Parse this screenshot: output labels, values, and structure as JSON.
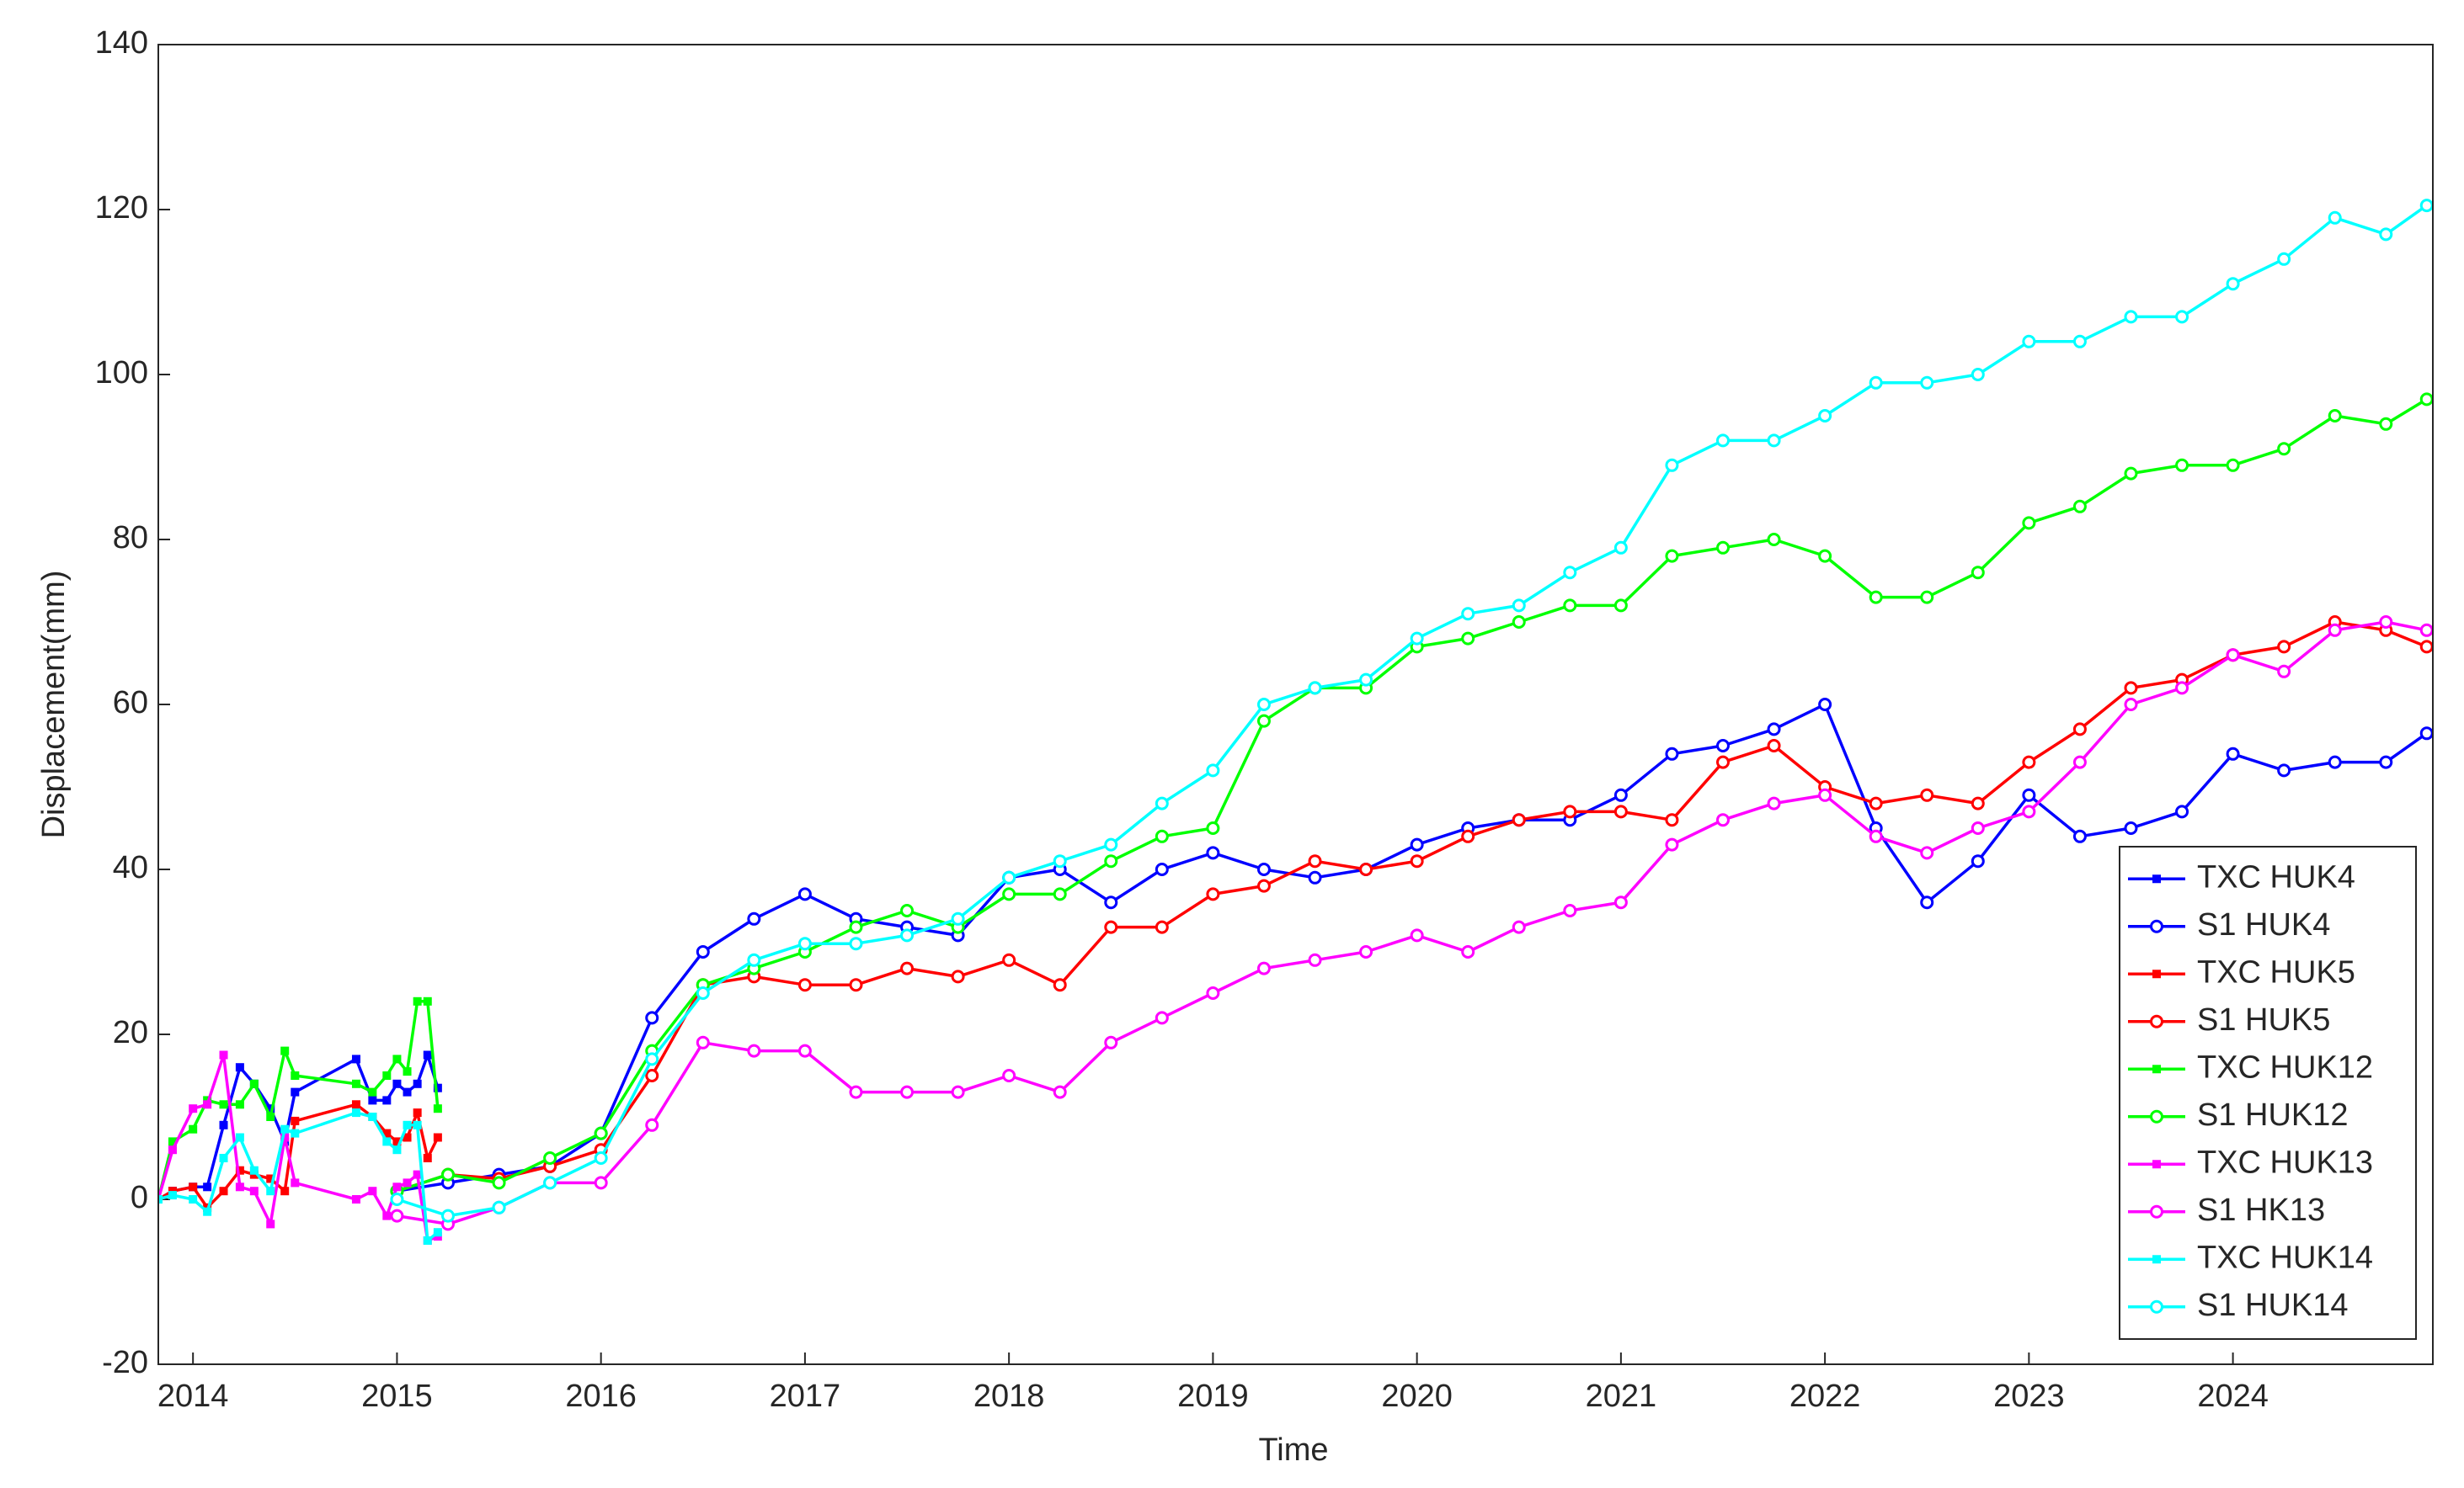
{
  "chart_data": {
    "type": "line",
    "xlabel": "Time",
    "ylabel": "Displacement(mm)",
    "xlim": [
      2013.83,
      2024.98
    ],
    "xticks": [
      2014,
      2015,
      2016,
      2017,
      2018,
      2019,
      2020,
      2021,
      2022,
      2023,
      2024
    ],
    "ylim": [
      -20,
      140
    ],
    "yticks": [
      -20,
      0,
      20,
      40,
      60,
      80,
      100,
      120,
      140
    ],
    "grid": false,
    "legend": "lower right",
    "series": [
      {
        "name": "TXC HUK4",
        "color": "#0000ff",
        "marker": "square",
        "x": [
          2013.83,
          2013.9,
          2014.0,
          2014.07,
          2014.15,
          2014.23,
          2014.3,
          2014.38,
          2014.45,
          2014.5,
          2014.8,
          2014.88,
          2014.95,
          2015.0,
          2015.05,
          2015.1,
          2015.15,
          2015.2
        ],
        "values": [
          0,
          1,
          1.5,
          1.5,
          9,
          16,
          14,
          11,
          7,
          13,
          17,
          12,
          12,
          14,
          13,
          14,
          17.5,
          13.5
        ]
      },
      {
        "name": "S1 HUK4",
        "color": "#0000ff",
        "marker": "circle",
        "x": [
          2015.0,
          2015.25,
          2015.5,
          2015.75,
          2016.0,
          2016.25,
          2016.5,
          2016.75,
          2017.0,
          2017.25,
          2017.5,
          2017.75,
          2018.0,
          2018.25,
          2018.5,
          2018.75,
          2019.0,
          2019.25,
          2019.5,
          2019.75,
          2020.0,
          2020.25,
          2020.5,
          2020.75,
          2021.0,
          2021.25,
          2021.5,
          2021.75,
          2022.0,
          2022.25,
          2022.5,
          2022.75,
          2023.0,
          2023.25,
          2023.5,
          2023.75,
          2024.0,
          2024.25,
          2024.5,
          2024.75,
          2024.95
        ],
        "values": [
          1,
          2,
          3,
          4,
          8,
          22,
          30,
          34,
          37,
          34,
          33,
          32,
          39,
          40,
          36,
          40,
          42,
          40,
          39,
          40,
          43,
          45,
          46,
          46,
          49,
          54,
          55,
          57,
          60,
          45,
          36,
          41,
          49,
          44,
          45,
          47,
          54,
          52,
          53,
          53,
          56.5
        ]
      },
      {
        "name": "TXC HUK5",
        "color": "#ff0000",
        "marker": "square",
        "x": [
          2013.83,
          2013.9,
          2014.0,
          2014.07,
          2014.15,
          2014.23,
          2014.3,
          2014.38,
          2014.45,
          2014.5,
          2014.8,
          2014.88,
          2014.95,
          2015.0,
          2015.05,
          2015.1,
          2015.15,
          2015.2
        ],
        "values": [
          0,
          1,
          1.5,
          -1,
          1,
          3.5,
          3,
          2.5,
          1,
          9.5,
          11.5,
          10,
          8,
          7,
          7.5,
          10.5,
          5,
          7.5
        ]
      },
      {
        "name": "S1 HUK5",
        "color": "#ff0000",
        "marker": "circle",
        "x": [
          2015.0,
          2015.25,
          2015.5,
          2015.75,
          2016.0,
          2016.25,
          2016.5,
          2016.75,
          2017.0,
          2017.25,
          2017.5,
          2017.75,
          2018.0,
          2018.25,
          2018.5,
          2018.75,
          2019.0,
          2019.25,
          2019.5,
          2019.75,
          2020.0,
          2020.25,
          2020.5,
          2020.75,
          2021.0,
          2021.25,
          2021.5,
          2021.75,
          2022.0,
          2022.25,
          2022.5,
          2022.75,
          2023.0,
          2023.25,
          2023.5,
          2023.75,
          2024.0,
          2024.25,
          2024.5,
          2024.75,
          2024.95
        ],
        "values": [
          1,
          3,
          2.5,
          4,
          6,
          15,
          26,
          27,
          26,
          26,
          28,
          27,
          29,
          26,
          33,
          33,
          37,
          38,
          41,
          40,
          41,
          44,
          46,
          47,
          47,
          46,
          53,
          55,
          50,
          48,
          49,
          48,
          53,
          57,
          62,
          63,
          66,
          67,
          70,
          69,
          67
        ]
      },
      {
        "name": "TXC HUK12",
        "color": "#00ff00",
        "marker": "square",
        "x": [
          2013.83,
          2013.9,
          2014.0,
          2014.07,
          2014.15,
          2014.23,
          2014.3,
          2014.38,
          2014.45,
          2014.5,
          2014.8,
          2014.88,
          2014.95,
          2015.0,
          2015.05,
          2015.1,
          2015.15,
          2015.2
        ],
        "values": [
          0,
          7,
          8.5,
          12,
          11.5,
          11.5,
          14,
          10,
          18,
          15,
          14,
          13,
          15,
          17,
          15.5,
          24,
          24,
          11
        ]
      },
      {
        "name": "S1 HUK12",
        "color": "#00ff00",
        "marker": "circle",
        "x": [
          2015.0,
          2015.25,
          2015.5,
          2015.75,
          2016.0,
          2016.25,
          2016.5,
          2016.75,
          2017.0,
          2017.25,
          2017.5,
          2017.75,
          2018.0,
          2018.25,
          2018.5,
          2018.75,
          2019.0,
          2019.25,
          2019.5,
          2019.75,
          2020.0,
          2020.25,
          2020.5,
          2020.75,
          2021.0,
          2021.25,
          2021.5,
          2021.75,
          2022.0,
          2022.25,
          2022.5,
          2022.75,
          2023.0,
          2023.25,
          2023.5,
          2023.75,
          2024.0,
          2024.25,
          2024.5,
          2024.75,
          2024.95
        ],
        "values": [
          1,
          3,
          2,
          5,
          8,
          18,
          26,
          28,
          30,
          33,
          35,
          33,
          37,
          37,
          41,
          44,
          45,
          58,
          62,
          62,
          67,
          68,
          70,
          72,
          72,
          78,
          79,
          80,
          78,
          73,
          73,
          76,
          82,
          84,
          88,
          89,
          89,
          91,
          95,
          94,
          97
        ]
      },
      {
        "name": "TXC HUK13",
        "color": "#ff00ff",
        "marker": "square",
        "x": [
          2013.83,
          2013.9,
          2014.0,
          2014.07,
          2014.15,
          2014.23,
          2014.3,
          2014.38,
          2014.45,
          2014.5,
          2014.8,
          2014.88,
          2014.95,
          2015.0,
          2015.05,
          2015.1,
          2015.15,
          2015.2
        ],
        "values": [
          0,
          6,
          11,
          11.5,
          17.5,
          1.5,
          1,
          -3,
          7.5,
          2,
          0,
          1,
          -2,
          1.5,
          2,
          3,
          -5,
          -4.5
        ]
      },
      {
        "name": "S1 HK13",
        "color": "#ff00ff",
        "marker": "circle",
        "x": [
          2015.0,
          2015.25,
          2015.5,
          2015.75,
          2016.0,
          2016.25,
          2016.5,
          2016.75,
          2017.0,
          2017.25,
          2017.5,
          2017.75,
          2018.0,
          2018.25,
          2018.5,
          2018.75,
          2019.0,
          2019.25,
          2019.5,
          2019.75,
          2020.0,
          2020.25,
          2020.5,
          2020.75,
          2021.0,
          2021.25,
          2021.5,
          2021.75,
          2022.0,
          2022.25,
          2022.5,
          2022.75,
          2023.0,
          2023.25,
          2023.5,
          2023.75,
          2024.0,
          2024.25,
          2024.5,
          2024.75,
          2024.95
        ],
        "values": [
          -2,
          -3,
          -1,
          2,
          2,
          9,
          19,
          18,
          18,
          13,
          13,
          13,
          15,
          13,
          19,
          22,
          25,
          28,
          29,
          30,
          32,
          30,
          33,
          35,
          36,
          43,
          46,
          48,
          49,
          44,
          42,
          45,
          47,
          53,
          60,
          62,
          66,
          64,
          69,
          70,
          69
        ]
      },
      {
        "name": "TXC HUK14",
        "color": "#00ffff",
        "marker": "square",
        "x": [
          2013.83,
          2013.9,
          2014.0,
          2014.07,
          2014.15,
          2014.23,
          2014.3,
          2014.38,
          2014.45,
          2014.5,
          2014.8,
          2014.88,
          2014.95,
          2015.0,
          2015.05,
          2015.1,
          2015.15,
          2015.2
        ],
        "values": [
          0,
          0.5,
          0,
          -1.5,
          5,
          7.5,
          3.5,
          1,
          8.5,
          8,
          10.5,
          10,
          7,
          6,
          9,
          9,
          -5,
          -4
        ]
      },
      {
        "name": "S1 HUK14",
        "color": "#00ffff",
        "marker": "circle",
        "x": [
          2015.0,
          2015.25,
          2015.5,
          2015.75,
          2016.0,
          2016.25,
          2016.5,
          2016.75,
          2017.0,
          2017.25,
          2017.5,
          2017.75,
          2018.0,
          2018.25,
          2018.5,
          2018.75,
          2019.0,
          2019.25,
          2019.5,
          2019.75,
          2020.0,
          2020.25,
          2020.5,
          2020.75,
          2021.0,
          2021.25,
          2021.5,
          2021.75,
          2022.0,
          2022.25,
          2022.5,
          2022.75,
          2023.0,
          2023.25,
          2023.5,
          2023.75,
          2024.0,
          2024.25,
          2024.5,
          2024.75,
          2024.95
        ],
        "values": [
          0,
          -2,
          -1,
          2,
          5,
          17,
          25,
          29,
          31,
          31,
          32,
          34,
          39,
          41,
          43,
          48,
          52,
          60,
          62,
          63,
          68,
          71,
          72,
          76,
          79,
          89,
          92,
          92,
          95,
          99,
          99,
          100,
          104,
          104,
          107,
          107,
          111,
          114,
          119,
          117,
          120.5
        ]
      }
    ]
  }
}
